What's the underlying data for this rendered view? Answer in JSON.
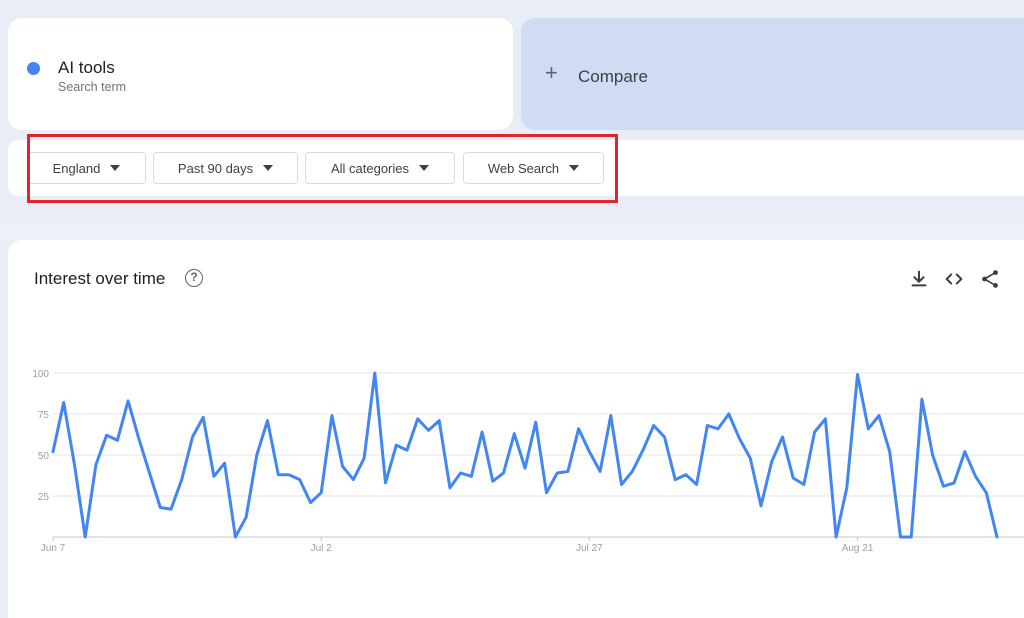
{
  "search_term": {
    "title": "AI tools",
    "subtitle": "Search term",
    "dot_color": "#4285f4"
  },
  "compare": {
    "plus": "+",
    "label": "Compare"
  },
  "filters": [
    {
      "label": "England"
    },
    {
      "label": "Past 90 days"
    },
    {
      "label": "All categories"
    },
    {
      "label": "Web Search"
    }
  ],
  "highlight_color": "#e0262d",
  "chart_panel": {
    "title": "Interest over time",
    "help_glyph": "?",
    "icons": [
      "download-icon",
      "embed-icon",
      "share-icon"
    ]
  },
  "chart_data": {
    "type": "line",
    "title": "Interest over time",
    "xlabel": "",
    "ylabel": "",
    "ylim": [
      0,
      100
    ],
    "yticks": [
      25,
      50,
      75,
      100
    ],
    "xtick_labels": [
      {
        "label": "Jun 7",
        "index": 0
      },
      {
        "label": "Jul 2",
        "index": 25
      },
      {
        "label": "Jul 27",
        "index": 50
      },
      {
        "label": "Aug 21",
        "index": 75
      }
    ],
    "grid": true,
    "line_color": "#4285f4",
    "series": [
      {
        "name": "AI tools",
        "values": [
          52,
          82,
          44,
          0,
          44,
          62,
          59,
          83,
          60,
          39,
          18,
          17,
          35,
          61,
          73,
          37,
          45,
          0,
          12,
          50,
          71,
          38,
          38,
          35,
          21,
          27,
          74,
          43,
          35,
          48,
          100,
          33,
          56,
          53,
          72,
          65,
          71,
          30,
          39,
          37,
          64,
          34,
          39,
          63,
          42,
          70,
          27,
          39,
          40,
          66,
          52,
          40,
          74,
          32,
          40,
          53,
          68,
          61,
          35,
          38,
          32,
          68,
          66,
          75,
          60,
          48,
          19,
          46,
          61,
          36,
          32,
          64,
          72,
          0,
          30,
          99,
          66,
          74,
          52,
          0,
          0,
          84,
          50,
          31,
          33,
          52,
          37,
          27,
          0
        ]
      }
    ]
  }
}
